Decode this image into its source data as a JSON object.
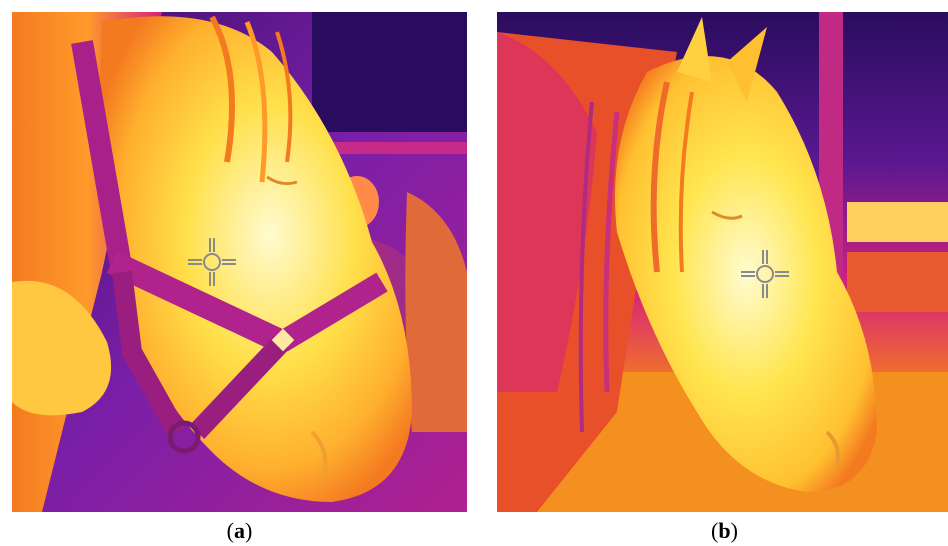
{
  "figure": {
    "panels": [
      {
        "id": "a",
        "caption_open": "(",
        "caption_letter": "a",
        "caption_close": ")",
        "cursor_icon": "crosshair-icon"
      },
      {
        "id": "b",
        "caption_open": "(",
        "caption_letter": "b",
        "caption_close": ")",
        "cursor_icon": "crosshair-icon"
      }
    ],
    "palette": {
      "cold": "#2a0c5e",
      "cool": "#7a1fa8",
      "mid": "#d6207d",
      "warm": "#f47a20",
      "hot": "#ffd23a",
      "hottest": "#fffbd0",
      "crosshair": "#8a8a8a"
    }
  }
}
